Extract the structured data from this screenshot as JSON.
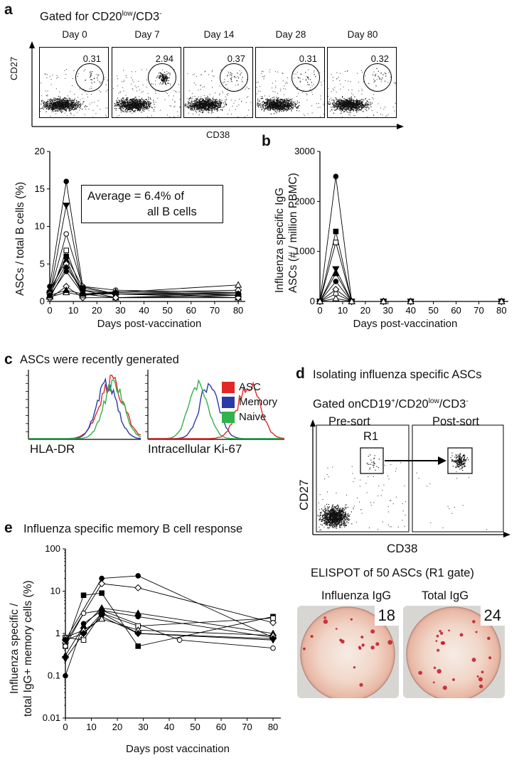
{
  "panel_a": {
    "letter": "a",
    "gate_title": "Gated for CD20",
    "gate_title_sup": "low",
    "gate_title_tail": "/CD3",
    "gate_title_sup2": "-",
    "days": [
      "Day 0",
      "Day 7",
      "Day 14",
      "Day 28",
      "Day 80"
    ],
    "percentages": [
      "0.31",
      "2.94",
      "0.37",
      "0.31",
      "0.32"
    ],
    "xlabel": "CD38",
    "ylabel": "CD27"
  },
  "panel_a_chart": {
    "ylabel": "ASCs / total B cells (%)",
    "xlabel": "Days post-vaccination",
    "annotation_line1": "Average = 6.4% of",
    "annotation_line2": "all B cells",
    "yticks": [
      "0",
      "5",
      "10",
      "15",
      "20"
    ],
    "xticks": [
      "0",
      "10",
      "20",
      "30",
      "40",
      "50",
      "60",
      "70",
      "80"
    ]
  },
  "panel_b": {
    "letter": "b",
    "ylabel_line1": "Influenza specific IgG",
    "ylabel_line2": "ASCs (# / million PBMC)",
    "xlabel": "Days post-vaccination",
    "yticks": [
      "0",
      "1000",
      "2000",
      "3000"
    ],
    "xticks": [
      "0",
      "10",
      "20",
      "30",
      "40",
      "50",
      "60",
      "70",
      "80"
    ]
  },
  "panel_c": {
    "letter": "c",
    "title": "ASCs were recently generated",
    "xlabel_left": "HLA-DR",
    "xlabel_right": "Intracellular Ki-67",
    "legend": [
      "ASC",
      "Memory",
      "Naive"
    ],
    "colors": {
      "ASC": "#e32626",
      "Memory": "#2b3aa8",
      "Naive": "#2fb34a"
    }
  },
  "panel_d": {
    "letter": "d",
    "title": "Isolating influenza specific ASCs",
    "gate_prefix": "Gated on",
    "gate_cd19": "CD19",
    "gate_cd19_sup": "+",
    "gate_cd20": "/CD20",
    "gate_cd20_sup": "low",
    "gate_cd3": "/CD3",
    "gate_cd3_sup": "-",
    "presort": "Pre-sort",
    "postsort": "Post-sort",
    "gate_name": "R1",
    "ylabel": "CD27",
    "xlabel": "CD38",
    "elispot_title": "ELISPOT of 50 ASCs (R1 gate)",
    "well_labels": [
      "Influenza IgG",
      "Total IgG"
    ],
    "well_counts": [
      "18",
      "24"
    ]
  },
  "panel_e": {
    "letter": "e",
    "title": "Influenza specific memory B cell response",
    "ylabel_line1": "Influenza specific /",
    "ylabel_line2": "total IgG+ memory cells (%)",
    "xlabel": "Days post vaccination",
    "yticks": [
      "0.01",
      "0.1",
      "1",
      "10",
      "100"
    ],
    "xticks": [
      "0",
      "10",
      "20",
      "30",
      "40",
      "50",
      "60",
      "70",
      "80"
    ]
  },
  "chart_data": [
    {
      "type": "line",
      "id": "asc_percent",
      "x": [
        0,
        7,
        14,
        28,
        80
      ],
      "xlim": [
        0,
        83
      ],
      "ylim": [
        0,
        20
      ],
      "series": [
        {
          "marker": "filled-circle",
          "values": [
            2.0,
            16.0,
            2.0,
            1.0,
            1.0
          ]
        },
        {
          "marker": "filled-triangle-down",
          "values": [
            1.0,
            12.8,
            1.5,
            1.0,
            1.2
          ]
        },
        {
          "marker": "open-circle",
          "values": [
            1.0,
            9.0,
            2.0,
            1.5,
            1.2
          ]
        },
        {
          "marker": "open-square",
          "values": [
            0.6,
            6.8,
            1.0,
            0.5,
            0.8
          ]
        },
        {
          "marker": "filled-square",
          "values": [
            1.2,
            6.0,
            1.8,
            1.0,
            0.8
          ]
        },
        {
          "marker": "filled-triangle",
          "values": [
            1.5,
            5.5,
            1.0,
            0.5,
            0.5
          ]
        },
        {
          "marker": "open-diamond",
          "values": [
            1.0,
            5.0,
            1.0,
            1.2,
            1.5
          ]
        },
        {
          "marker": "filled-diamond",
          "values": [
            0.5,
            4.5,
            1.5,
            0.5,
            1.0
          ]
        },
        {
          "marker": "filled-circle",
          "values": [
            0.8,
            4.0,
            1.0,
            1.0,
            0.5
          ]
        },
        {
          "marker": "open-diamond",
          "values": [
            0.4,
            2.0,
            0.5,
            0.5,
            0.5
          ]
        },
        {
          "marker": "open-triangle",
          "values": [
            0.6,
            1.2,
            0.8,
            1.2,
            2.2
          ]
        },
        {
          "marker": "filled-triangle",
          "values": [
            0.8,
            1.5,
            1.0,
            1.3,
            1.0
          ]
        }
      ]
    },
    {
      "type": "line",
      "id": "influenza_igg_ascs",
      "x": [
        0,
        7,
        14,
        28,
        40,
        80
      ],
      "xlim": [
        0,
        83
      ],
      "ylim": [
        0,
        3000
      ],
      "series": [
        {
          "marker": "filled-circle",
          "values": [
            0,
            2500,
            0,
            0,
            0,
            0
          ]
        },
        {
          "marker": "filled-square",
          "values": [
            0,
            1400,
            0,
            0,
            0,
            0
          ]
        },
        {
          "marker": "open-square",
          "values": [
            0,
            1180,
            0,
            0,
            0,
            0
          ]
        },
        {
          "marker": "filled-triangle-down",
          "values": [
            0,
            650,
            0,
            0,
            0,
            0
          ]
        },
        {
          "marker": "filled-triangle",
          "values": [
            0,
            560,
            0,
            0,
            0,
            0
          ]
        },
        {
          "marker": "filled-circle",
          "values": [
            0,
            400,
            0,
            0,
            0,
            0
          ]
        },
        {
          "marker": "open-diamond",
          "values": [
            0,
            240,
            0,
            0,
            0,
            0
          ]
        },
        {
          "marker": "open-circle",
          "values": [
            0,
            150,
            0,
            0,
            0,
            0
          ]
        },
        {
          "marker": "open-triangle",
          "values": [
            0,
            60,
            0,
            0,
            0,
            0
          ]
        }
      ]
    },
    {
      "type": "line",
      "id": "memory_b_cell_response",
      "scale": "log",
      "xlim": [
        0,
        83
      ],
      "ylim": [
        0.01,
        100
      ],
      "series": [
        {
          "marker": "filled-circle",
          "x": [
            0,
            14,
            28,
            80
          ],
          "values": [
            0.7,
            20,
            23,
            0.8
          ]
        },
        {
          "marker": "open-diamond",
          "x": [
            0,
            14,
            28,
            80
          ],
          "values": [
            0.6,
            15,
            12,
            1.8
          ]
        },
        {
          "marker": "filled-square",
          "x": [
            0,
            7,
            14,
            28,
            80
          ],
          "values": [
            0.5,
            8,
            9,
            0.5,
            2.5
          ]
        },
        {
          "marker": "open-circle",
          "x": [
            0,
            7,
            14,
            44,
            80
          ],
          "values": [
            0.5,
            3,
            3.5,
            0.7,
            0.45
          ]
        },
        {
          "marker": "filled-triangle",
          "x": [
            0,
            7,
            14,
            28,
            80
          ],
          "values": [
            0.3,
            1.5,
            4,
            3,
            1.0
          ]
        },
        {
          "marker": "open-square",
          "x": [
            0,
            7,
            14,
            28,
            80
          ],
          "values": [
            0.8,
            0.7,
            3,
            1.5,
            2.3
          ]
        },
        {
          "marker": "filled-circle",
          "x": [
            0,
            7,
            14,
            28,
            80
          ],
          "values": [
            0.1,
            1.7,
            3.5,
            2.5,
            0.8
          ]
        },
        {
          "marker": "filled-triangle-down",
          "x": [
            0,
            7,
            14,
            28,
            80
          ],
          "values": [
            0.25,
            1.0,
            2.5,
            1.0,
            0.7
          ]
        },
        {
          "marker": "open-triangle",
          "x": [
            0,
            7,
            14,
            28,
            80
          ],
          "values": [
            0.8,
            1.2,
            2.2,
            1.2,
            0.9
          ]
        },
        {
          "marker": "filled-diamond",
          "x": [
            0,
            7,
            14,
            28,
            80
          ],
          "values": [
            0.7,
            1.0,
            3,
            1.0,
            0.75
          ]
        }
      ]
    }
  ]
}
